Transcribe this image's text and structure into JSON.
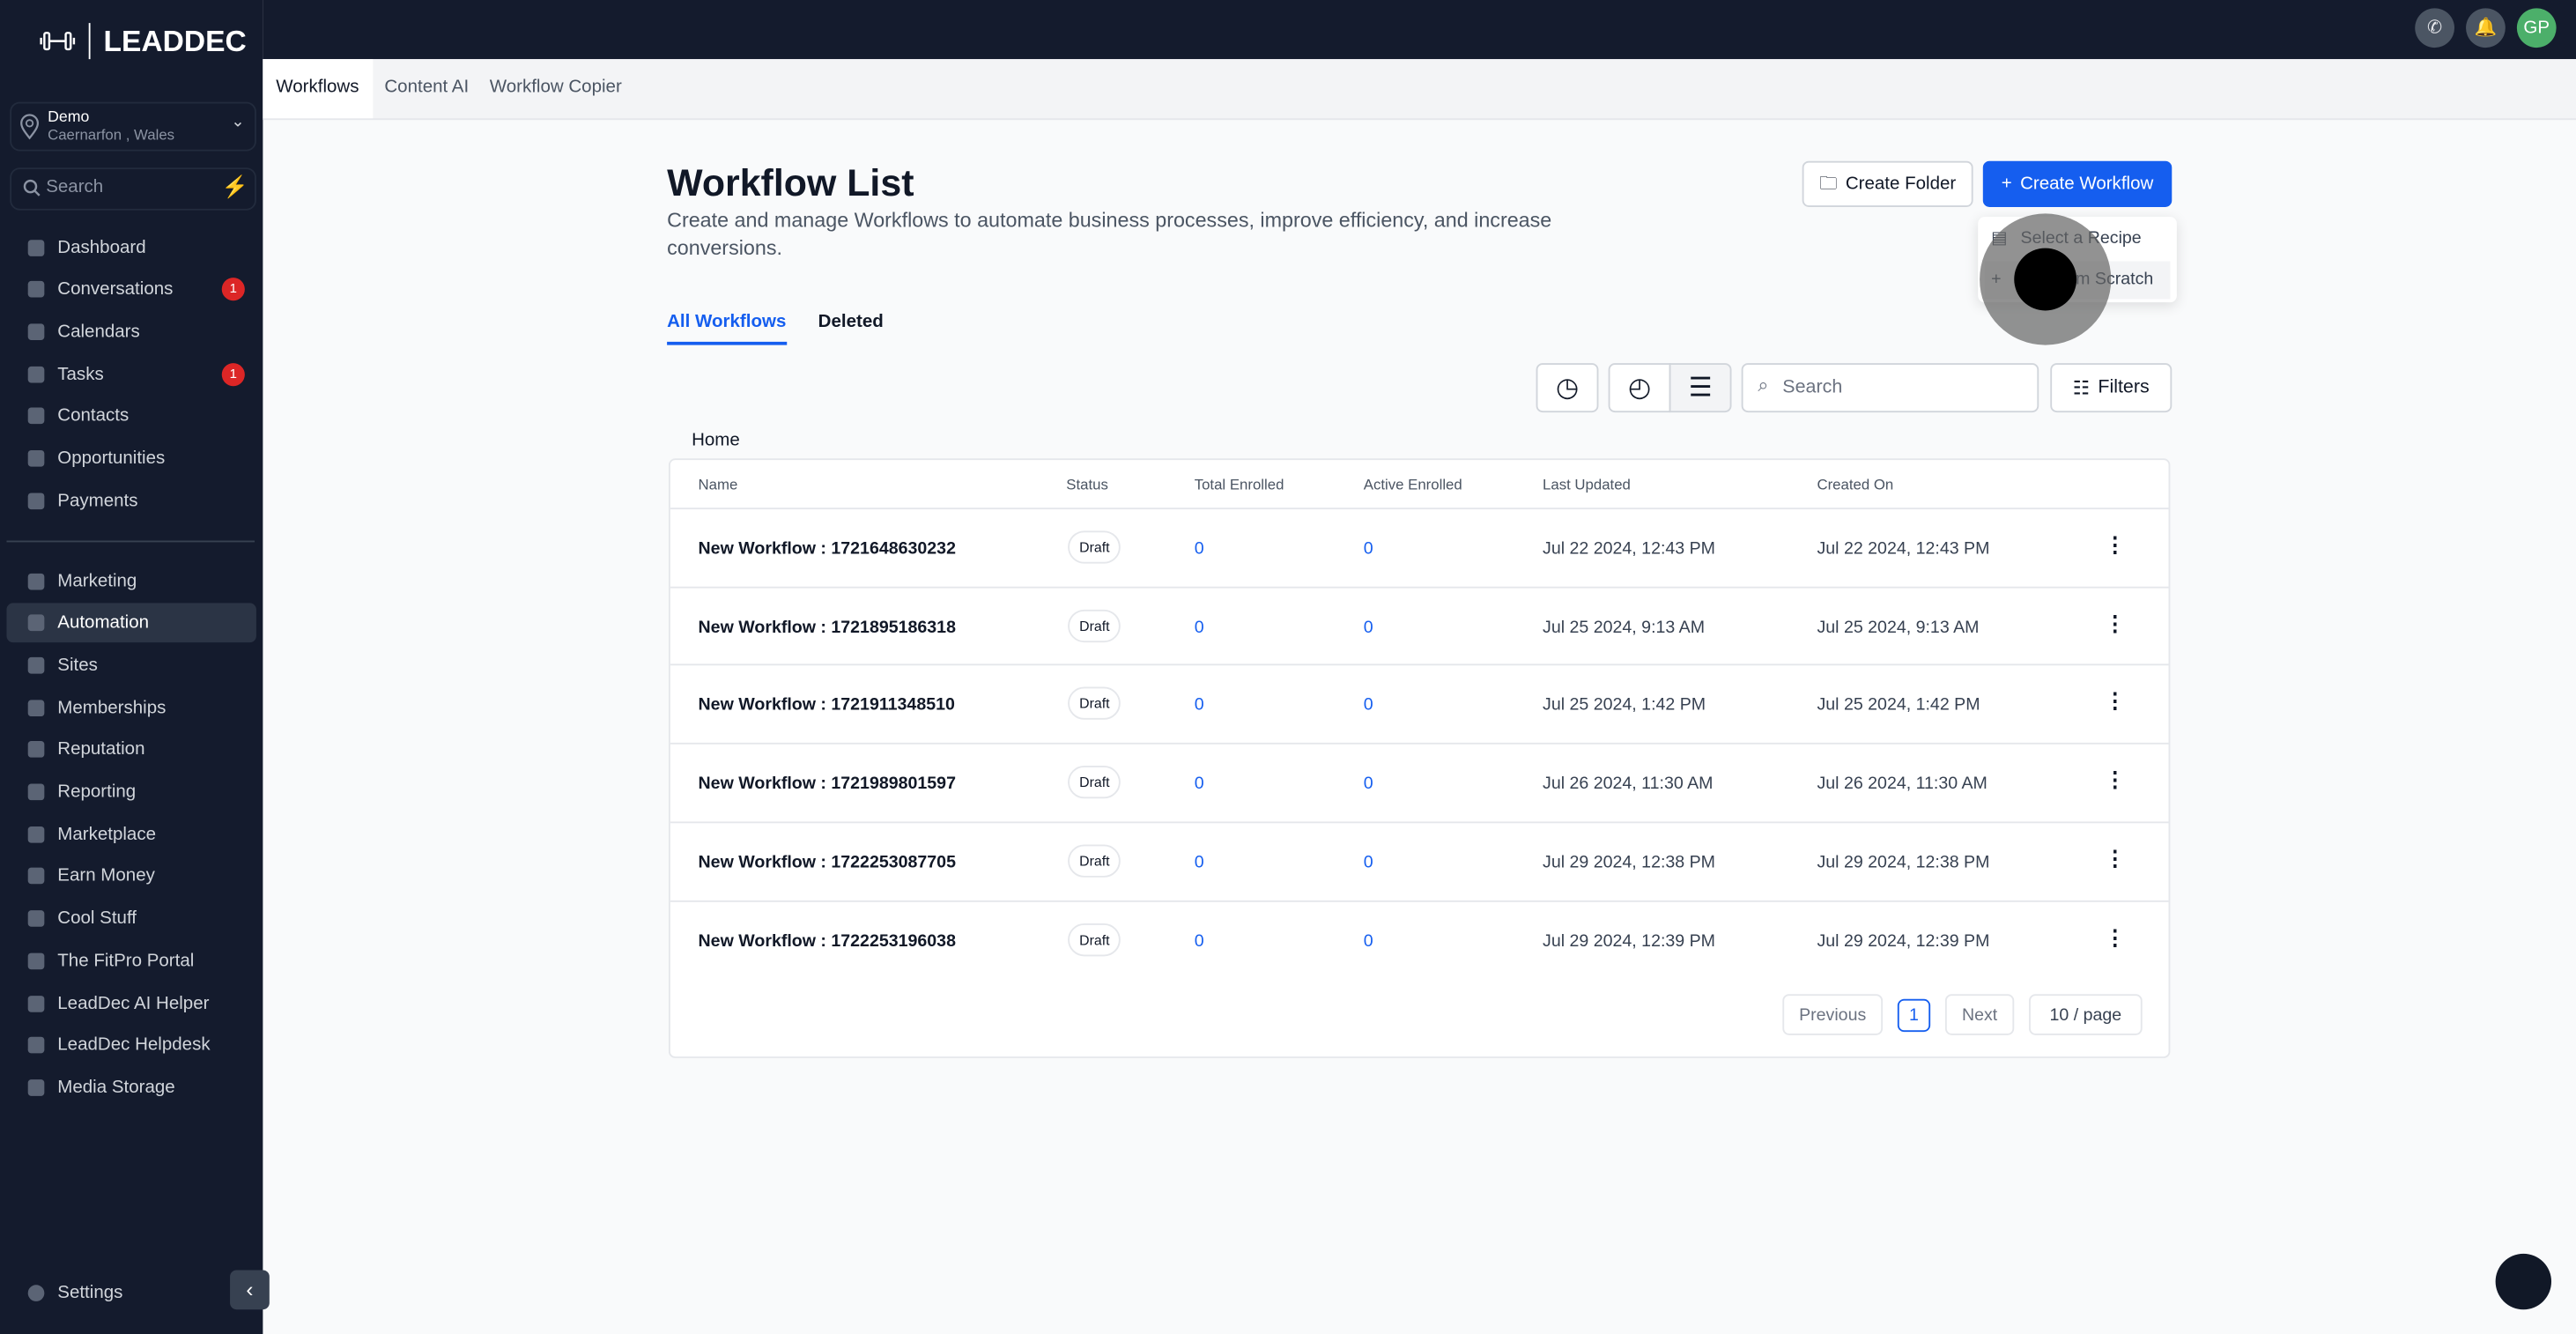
{
  "brand": {
    "name": "LEADDEC"
  },
  "location": {
    "name": "Demo",
    "address": "Caernarfon , Wales"
  },
  "sidebar": {
    "search_placeholder": "Search",
    "items": [
      {
        "label": "Dashboard"
      },
      {
        "label": "Conversations",
        "badge": "1"
      },
      {
        "label": "Calendars"
      },
      {
        "label": "Tasks",
        "badge": "1"
      },
      {
        "label": "Contacts"
      },
      {
        "label": "Opportunities"
      },
      {
        "label": "Payments"
      },
      {
        "label": "Marketing"
      },
      {
        "label": "Automation",
        "active": true
      },
      {
        "label": "Sites"
      },
      {
        "label": "Memberships"
      },
      {
        "label": "Reputation"
      },
      {
        "label": "Reporting"
      },
      {
        "label": "Marketplace"
      },
      {
        "label": "Earn Money"
      },
      {
        "label": "Cool Stuff"
      },
      {
        "label": "The FitPro Portal"
      },
      {
        "label": "LeadDec AI Helper"
      },
      {
        "label": "LeadDec Helpdesk"
      },
      {
        "label": "Media Storage"
      }
    ],
    "settings": "Settings"
  },
  "topbar": {
    "avatar": "GP"
  },
  "tabs": [
    "Workflows",
    "Content AI",
    "Workflow Copier"
  ],
  "page": {
    "title": "Workflow List",
    "description": "Create and manage Workflows to automate business processes, improve efficiency, and increase conversions.",
    "create_folder": "Create Folder",
    "create_workflow": "Create Workflow",
    "menu": [
      "Select a Recipe",
      "Start from Scratch"
    ],
    "subtabs": [
      "All Workflows",
      "Deleted"
    ],
    "search_placeholder": "Search",
    "filters": "Filters",
    "breadcrumb": "Home"
  },
  "table": {
    "headers": [
      "Name",
      "Status",
      "Total Enrolled",
      "Active Enrolled",
      "Last Updated",
      "Created On"
    ],
    "rows": [
      {
        "name": "New Workflow : 1721648630232",
        "status": "Draft",
        "total": "0",
        "active": "0",
        "updated": "Jul 22 2024, 12:43 PM",
        "created": "Jul 22 2024, 12:43 PM"
      },
      {
        "name": "New Workflow : 1721895186318",
        "status": "Draft",
        "total": "0",
        "active": "0",
        "updated": "Jul 25 2024, 9:13 AM",
        "created": "Jul 25 2024, 9:13 AM"
      },
      {
        "name": "New Workflow : 1721911348510",
        "status": "Draft",
        "total": "0",
        "active": "0",
        "updated": "Jul 25 2024, 1:42 PM",
        "created": "Jul 25 2024, 1:42 PM"
      },
      {
        "name": "New Workflow : 1721989801597",
        "status": "Draft",
        "total": "0",
        "active": "0",
        "updated": "Jul 26 2024, 11:30 AM",
        "created": "Jul 26 2024, 11:30 AM"
      },
      {
        "name": "New Workflow : 1722253087705",
        "status": "Draft",
        "total": "0",
        "active": "0",
        "updated": "Jul 29 2024, 12:38 PM",
        "created": "Jul 29 2024, 12:38 PM"
      },
      {
        "name": "New Workflow : 1722253196038",
        "status": "Draft",
        "total": "0",
        "active": "0",
        "updated": "Jul 29 2024, 12:39 PM",
        "created": "Jul 29 2024, 12:39 PM"
      }
    ]
  },
  "pagination": {
    "previous": "Previous",
    "page": "1",
    "next": "Next",
    "per_page": "10 / page"
  },
  "colors": {
    "accent": "#155eef",
    "sidebar": "#141b2d",
    "badge": "#dc2626"
  }
}
